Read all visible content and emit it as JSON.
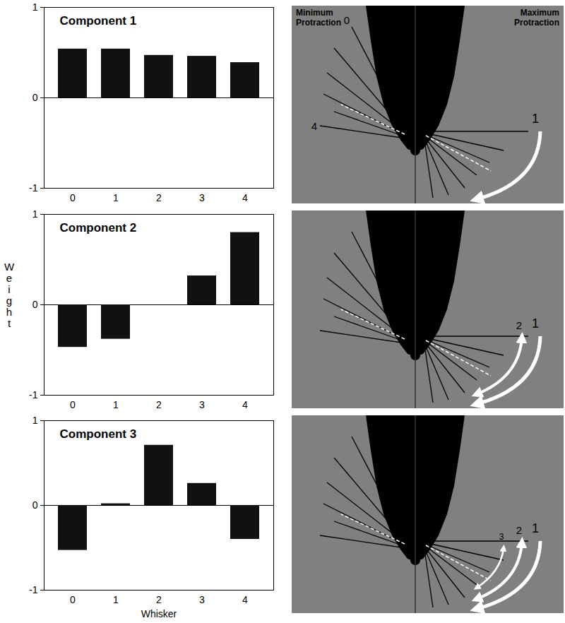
{
  "chart_data": [
    {
      "type": "bar",
      "title": "Component 1",
      "categories": [
        "0",
        "1",
        "2",
        "3",
        "4"
      ],
      "values": [
        0.54,
        0.54,
        0.47,
        0.46,
        0.39
      ],
      "color": "#111111",
      "ylim": [
        -1,
        1
      ],
      "yticks": [
        -1,
        0,
        1
      ]
    },
    {
      "type": "bar",
      "title": "Component 2",
      "categories": [
        "0",
        "1",
        "2",
        "3",
        "4"
      ],
      "values": [
        -0.47,
        -0.38,
        0,
        0.32,
        0.8
      ],
      "color": "#111111",
      "ylim": [
        -1,
        1
      ],
      "yticks": [
        -1,
        0,
        1
      ],
      "y_label": "Weight"
    },
    {
      "type": "bar",
      "title": "Component 3",
      "categories": [
        "0",
        "1",
        "2",
        "3",
        "4"
      ],
      "values": [
        -0.53,
        0.02,
        0.71,
        0.26,
        -0.4
      ],
      "color": "#111111",
      "ylim": [
        -1,
        1
      ],
      "yticks": [
        -1,
        0,
        1
      ],
      "x_label": "Whisker"
    }
  ],
  "diagrams": [
    {
      "left_title": "Minimum Protraction",
      "right_title": "Maximum Protraction",
      "whisker_labels": [
        "0",
        "4"
      ],
      "arrow_labels": [
        "1"
      ]
    },
    {
      "arrow_labels": [
        "2",
        "1"
      ]
    },
    {
      "arrow_labels": [
        "3",
        "2",
        "1"
      ]
    }
  ]
}
